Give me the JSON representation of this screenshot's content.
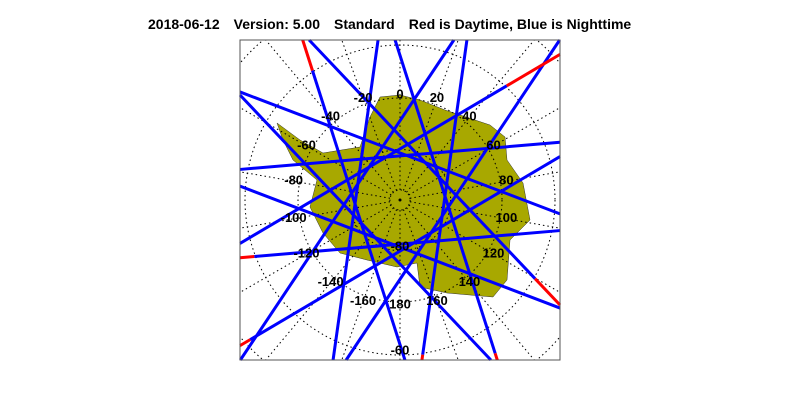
{
  "title": {
    "date": "2018-06-12",
    "version": "Version: 5.00",
    "product": "Standard",
    "legend": "Red is Daytime, Blue is Nighttime"
  },
  "map": {
    "projection": "south polar stereographic",
    "land_color": "#a8a800",
    "day_color": "#ff0000",
    "night_color": "#0000ff",
    "longitude_labels": [
      "0",
      "20",
      "40",
      "60",
      "80",
      "100",
      "120",
      "140",
      "160",
      "180",
      "-160",
      "-140",
      "-120",
      "-100",
      "-80",
      "-60",
      "-40",
      "-20"
    ],
    "latitude_labels": [
      "-80",
      "-60"
    ]
  }
}
